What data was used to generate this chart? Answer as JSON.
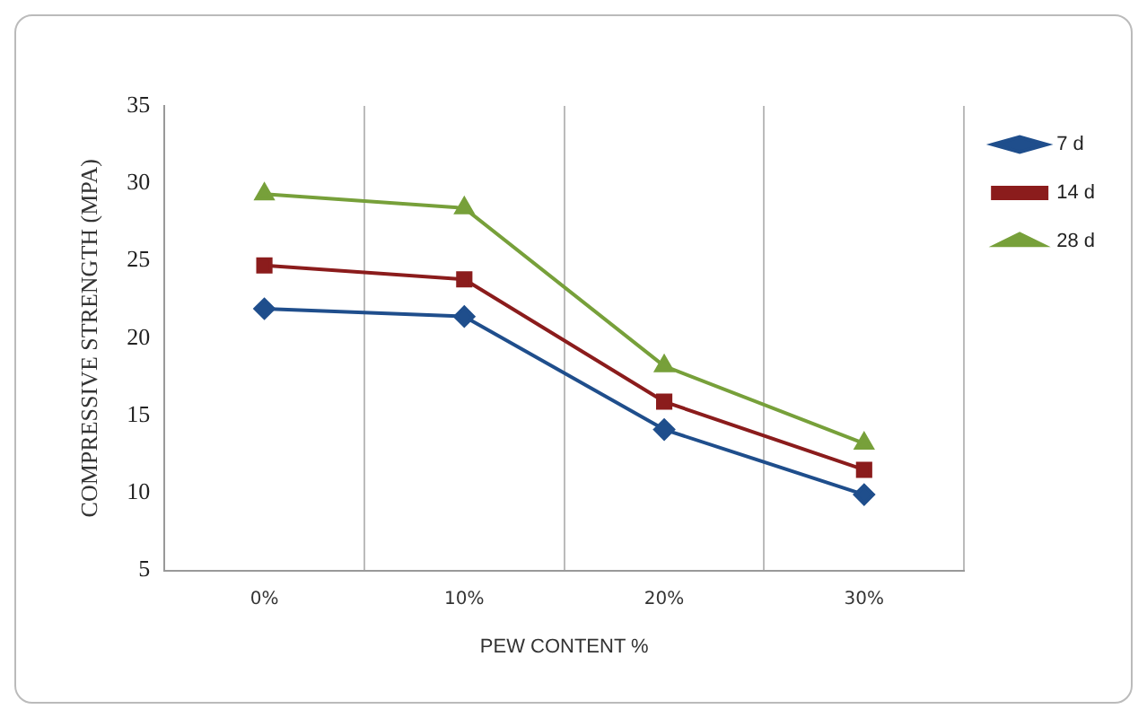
{
  "chart_data": {
    "type": "line",
    "xlabel": "PEW CONTENT %",
    "ylabel": "COMPRESSIVE STRENGTH (MPA)",
    "categories": [
      "0%",
      "10%",
      "20%",
      "30%"
    ],
    "series": [
      {
        "name": "7 d",
        "color": "#1f4e8c",
        "marker": "diamond",
        "values": [
          21.9,
          21.4,
          14.1,
          9.9
        ]
      },
      {
        "name": "14 d",
        "color": "#8b1c1c",
        "marker": "square",
        "values": [
          24.7,
          23.8,
          15.9,
          11.5
        ]
      },
      {
        "name": "28 d",
        "color": "#77a03a",
        "marker": "triangle",
        "values": [
          29.3,
          28.4,
          18.2,
          13.2
        ]
      }
    ],
    "ylim": [
      5,
      35
    ],
    "yticks": [
      5,
      10,
      15,
      20,
      25,
      30,
      35
    ],
    "grid": "x",
    "legend": "top right"
  }
}
